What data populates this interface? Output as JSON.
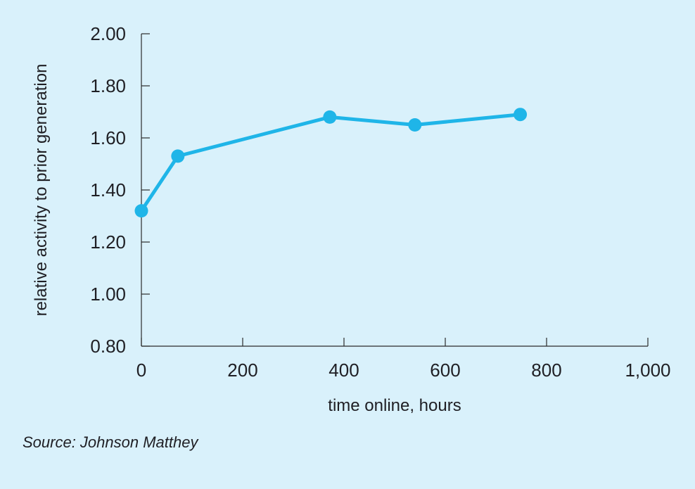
{
  "colors": {
    "background": "#d9f1fb",
    "line": "#1fb5e8",
    "axis": "#2b2b2b",
    "text": "#1f1f24"
  },
  "source": "Source: Johnson Matthey",
  "chart_data": {
    "type": "line",
    "title": "",
    "xlabel": "time online, hours",
    "ylabel": "relative activity to prior generation",
    "xlim": [
      0,
      1000
    ],
    "ylim": [
      0.8,
      2.0
    ],
    "x_ticks": [
      0,
      200,
      400,
      600,
      800,
      1000
    ],
    "x_tick_labels": [
      "0",
      "200",
      "400",
      "600",
      "800",
      "1,000"
    ],
    "y_ticks": [
      0.8,
      1.0,
      1.2,
      1.4,
      1.6,
      1.8,
      2.0
    ],
    "y_tick_labels": [
      "0.80",
      "1.00",
      "1.20",
      "1.40",
      "1.60",
      "1.80",
      "2.00"
    ],
    "grid": false,
    "legend": "none",
    "series": [
      {
        "x": [
          0,
          72,
          372,
          540,
          748
        ],
        "y": [
          1.32,
          1.53,
          1.68,
          1.65,
          1.69
        ]
      }
    ]
  }
}
